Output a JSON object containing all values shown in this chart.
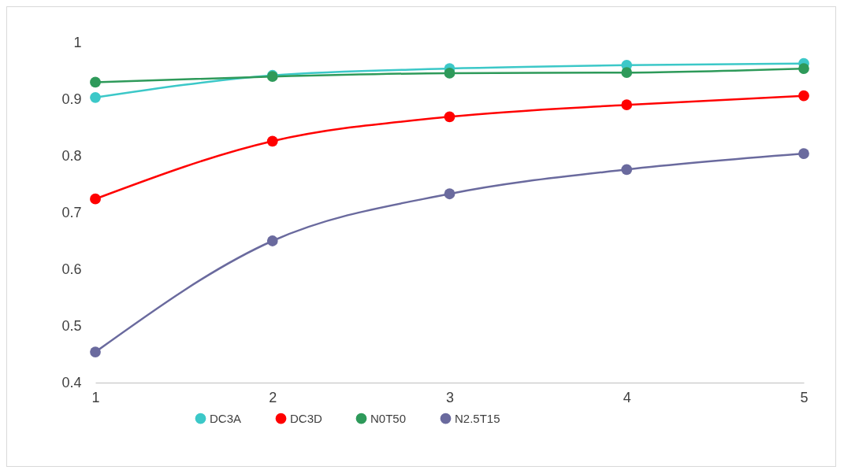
{
  "chart_data": {
    "type": "line",
    "x": [
      1,
      2,
      3,
      4,
      5
    ],
    "xlim": [
      1,
      5
    ],
    "xticks": [
      1,
      2,
      3,
      4,
      5
    ],
    "ylim": [
      0.4,
      1
    ],
    "yticks": [
      0.4,
      0.5,
      0.6,
      0.7,
      0.8,
      0.9,
      1
    ],
    "grid": false,
    "legend": "bottom",
    "marker": "circle",
    "line_style": "solid",
    "series": [
      {
        "name": "DC3A",
        "color": "#3cc8c8",
        "values": [
          0.903,
          0.942,
          0.954,
          0.96,
          0.963
        ]
      },
      {
        "name": "DC3D",
        "color": "#ff0000",
        "values": [
          0.724,
          0.826,
          0.869,
          0.89,
          0.906
        ]
      },
      {
        "name": "N0T50",
        "color": "#2e9a5a",
        "values": [
          0.93,
          0.94,
          0.946,
          0.947,
          0.954
        ]
      },
      {
        "name": "N2.5T15",
        "color": "#6a6a9e",
        "values": [
          0.454,
          0.65,
          0.733,
          0.776,
          0.804
        ]
      }
    ]
  }
}
